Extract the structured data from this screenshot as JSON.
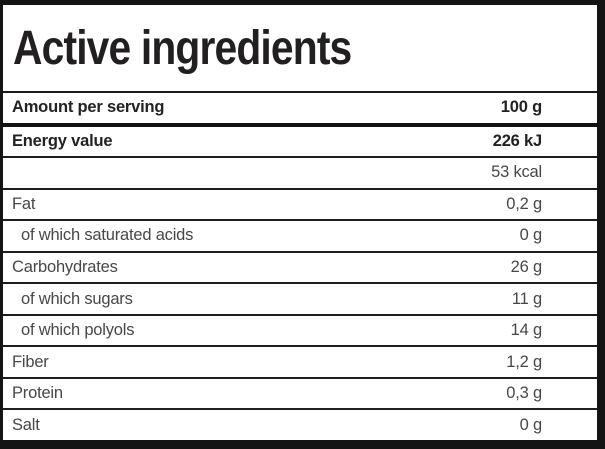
{
  "title": "Active ingredients",
  "table": {
    "rows": [
      {
        "label": "Amount per serving",
        "value": "100 g"
      },
      {
        "label": "Energy value",
        "value": "226 kJ"
      },
      {
        "label": "",
        "value": "53 kcal"
      },
      {
        "label": "Fat",
        "value": "0,2 g"
      },
      {
        "label": "of which saturated acids",
        "value": "0 g"
      },
      {
        "label": "Carbohydrates",
        "value": "26 g"
      },
      {
        "label": "of which sugars",
        "value": "11 g"
      },
      {
        "label": "of which polyols",
        "value": "14 g"
      },
      {
        "label": "Fiber",
        "value": "1,2 g"
      },
      {
        "label": "Protein",
        "value": "0,3 g"
      },
      {
        "label": "Salt",
        "value": "0 g"
      }
    ]
  },
  "colors": {
    "border": "#141414",
    "bold_text": "#242122",
    "regular_text": "#474747",
    "background": "#ffffff"
  }
}
